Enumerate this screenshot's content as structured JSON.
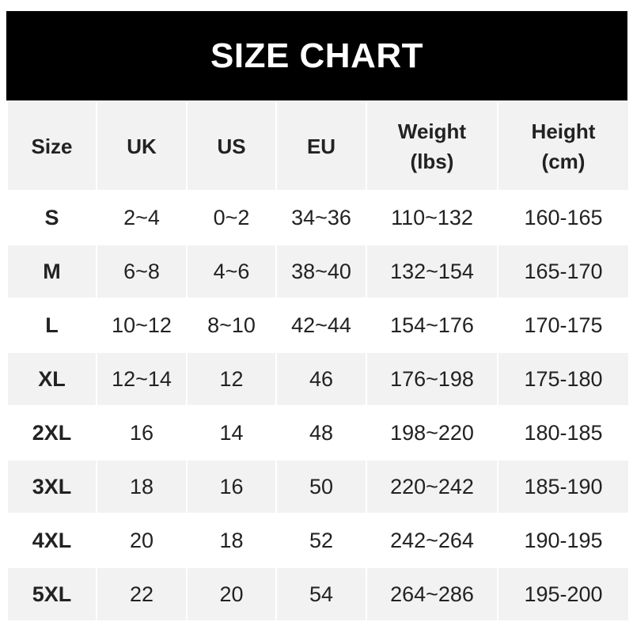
{
  "title": "SIZE CHART",
  "headers": [
    {
      "line1": "Size",
      "line2": ""
    },
    {
      "line1": "UK",
      "line2": ""
    },
    {
      "line1": "US",
      "line2": ""
    },
    {
      "line1": "EU",
      "line2": ""
    },
    {
      "line1": "Weight",
      "line2": "(lbs)"
    },
    {
      "line1": "Height",
      "line2": "(cm)"
    }
  ],
  "rows": [
    [
      "S",
      "2~4",
      "0~2",
      "34~36",
      "110~132",
      "160-165"
    ],
    [
      "M",
      "6~8",
      "4~6",
      "38~40",
      "132~154",
      "165-170"
    ],
    [
      "L",
      "10~12",
      "8~10",
      "42~44",
      "154~176",
      "170-175"
    ],
    [
      "XL",
      "12~14",
      "12",
      "46",
      "176~198",
      "175-180"
    ],
    [
      "2XL",
      "16",
      "14",
      "48",
      "198~220",
      "180-185"
    ],
    [
      "3XL",
      "18",
      "16",
      "50",
      "220~242",
      "185-190"
    ],
    [
      "4XL",
      "20",
      "18",
      "52",
      "242~264",
      "190-195"
    ],
    [
      "5XL",
      "22",
      "20",
      "54",
      "264~286",
      "195-200"
    ]
  ],
  "colors": {
    "header_bg": "#000000",
    "alt_row_bg": "#f2f2f2",
    "text": "#222222"
  }
}
